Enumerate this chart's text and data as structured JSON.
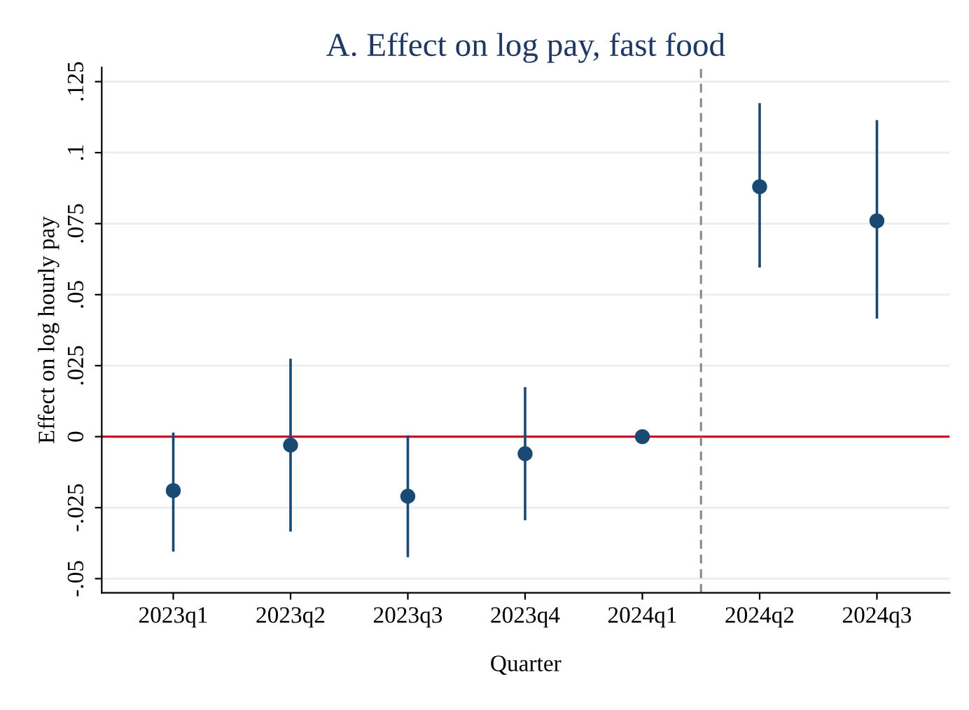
{
  "chart_data": {
    "type": "scatter",
    "title": "A. Effect on log pay, fast food",
    "xlabel": "Quarter",
    "ylabel": "Effect on log hourly pay",
    "categories": [
      "2023q1",
      "2023q2",
      "2023q3",
      "2023q4",
      "2024q1",
      "2024q2",
      "2024q3"
    ],
    "series": [
      {
        "color": "#1a4a73",
        "values": [
          -0.019,
          -0.003,
          -0.021,
          -0.006,
          0,
          0.088,
          0.076
        ],
        "errors": [
          [
            -0.04,
            0.001
          ],
          [
            -0.033,
            0.027
          ],
          [
            -0.042,
            0
          ],
          [
            -0.029,
            0.017
          ],
          null,
          [
            0.06,
            0.117
          ],
          [
            0.042,
            0.111
          ]
        ]
      }
    ],
    "ylim": [
      -0.055,
      0.13
    ],
    "yticks": [
      {
        "value": -0.05,
        "label": "-.05"
      },
      {
        "value": -0.025,
        "label": "-.025"
      },
      {
        "value": 0,
        "label": "0"
      },
      {
        "value": 0.025,
        "label": ".025"
      },
      {
        "value": 0.05,
        "label": ".05"
      },
      {
        "value": 0.075,
        "label": ".075"
      },
      {
        "value": 0.1,
        "label": ".1"
      },
      {
        "value": 0.125,
        "label": ".125"
      }
    ],
    "ref_lines": [
      {
        "axis": "y",
        "value": 0,
        "color": "#c8102e",
        "line_style": "solid"
      }
    ],
    "grid": "y",
    "legend": false,
    "marker": "circle"
  }
}
